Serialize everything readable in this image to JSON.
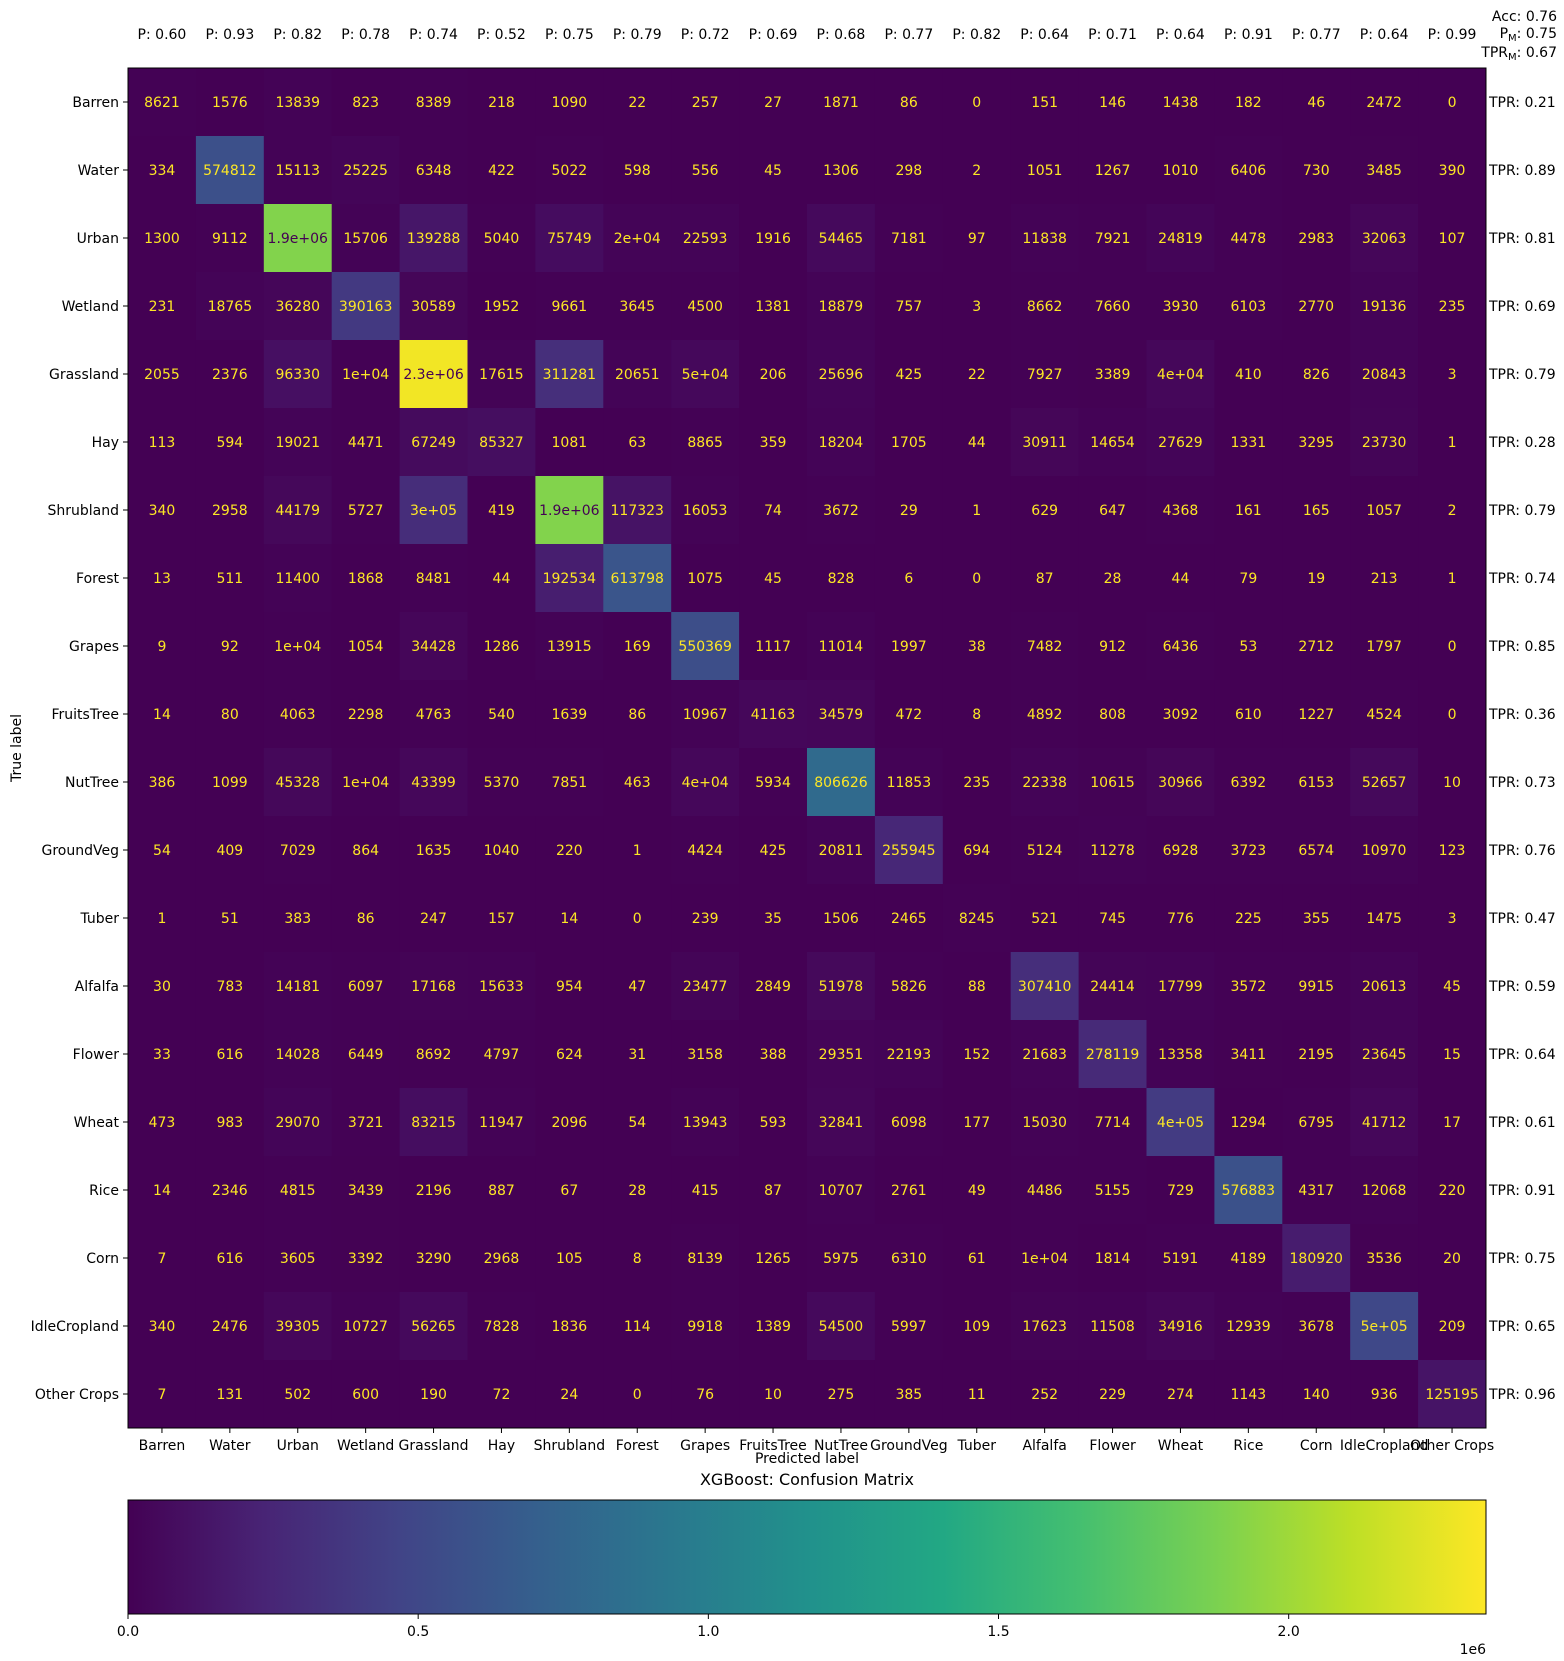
{
  "chart_data": {
    "type": "heatmap",
    "title": "XGBoost: Confusion Matrix",
    "xlabel": "Predicted label",
    "ylabel": "True label",
    "labels": [
      "Barren",
      "Water",
      "Urban",
      "Wetland",
      "Grassland",
      "Hay",
      "Shrubland",
      "Forest",
      "Grapes",
      "FruitsTree",
      "NutTree",
      "GroundVeg",
      "Tuber",
      "Alfalfa",
      "Flower",
      "Wheat",
      "Rice",
      "Corn",
      "IdleCropland",
      "Other Crops"
    ],
    "matrix": [
      [
        8621,
        1576,
        13839,
        823,
        8389,
        218,
        1090,
        22,
        257,
        27,
        1871,
        86,
        0,
        151,
        146,
        1438,
        182,
        46,
        2472,
        0
      ],
      [
        334,
        574812,
        15113,
        25225,
        6348,
        422,
        5022,
        598,
        556,
        45,
        1306,
        298,
        2,
        1051,
        1267,
        1010,
        6406,
        730,
        3485,
        390
      ],
      [
        1300,
        9112,
        1900000,
        15706,
        139288,
        5040,
        75749,
        20000,
        22593,
        1916,
        54465,
        7181,
        97,
        11838,
        7921,
        24819,
        4478,
        2983,
        32063,
        107
      ],
      [
        231,
        18765,
        36280,
        390163,
        30589,
        1952,
        9661,
        3645,
        4500,
        1381,
        18879,
        757,
        3,
        8662,
        7660,
        3930,
        6103,
        2770,
        19136,
        235
      ],
      [
        2055,
        2376,
        96330,
        10000,
        2300000,
        17615,
        311281,
        20651,
        50000,
        206,
        25696,
        425,
        22,
        7927,
        3389,
        40000,
        410,
        826,
        20843,
        3
      ],
      [
        113,
        594,
        19021,
        4471,
        67249,
        85327,
        1081,
        63,
        8865,
        359,
        18204,
        1705,
        44,
        30911,
        14654,
        27629,
        1331,
        3295,
        23730,
        1
      ],
      [
        340,
        2958,
        44179,
        5727,
        300000,
        419,
        1900000,
        117323,
        16053,
        74,
        3672,
        29,
        1,
        629,
        647,
        4368,
        161,
        165,
        1057,
        2
      ],
      [
        13,
        511,
        11400,
        1868,
        8481,
        44,
        192534,
        613798,
        1075,
        45,
        828,
        6,
        0,
        87,
        28,
        44,
        79,
        19,
        213,
        1
      ],
      [
        9,
        92,
        10000,
        1054,
        34428,
        1286,
        13915,
        169,
        550369,
        1117,
        11014,
        1997,
        38,
        7482,
        912,
        6436,
        53,
        2712,
        1797,
        0
      ],
      [
        14,
        80,
        4063,
        2298,
        4763,
        540,
        1639,
        86,
        10967,
        41163,
        34579,
        472,
        8,
        4892,
        808,
        3092,
        610,
        1227,
        4524,
        0
      ],
      [
        386,
        1099,
        45328,
        10000,
        43399,
        5370,
        7851,
        463,
        40000,
        5934,
        806626,
        11853,
        235,
        22338,
        10615,
        30966,
        6392,
        6153,
        52657,
        10
      ],
      [
        54,
        409,
        7029,
        864,
        1635,
        1040,
        220,
        1,
        4424,
        425,
        20811,
        255945,
        694,
        5124,
        11278,
        6928,
        3723,
        6574,
        10970,
        123
      ],
      [
        1,
        51,
        383,
        86,
        247,
        157,
        14,
        0,
        239,
        35,
        1506,
        2465,
        8245,
        521,
        745,
        776,
        225,
        355,
        1475,
        3
      ],
      [
        30,
        783,
        14181,
        6097,
        17168,
        15633,
        954,
        47,
        23477,
        2849,
        51978,
        5826,
        88,
        307410,
        24414,
        17799,
        3572,
        9915,
        20613,
        45
      ],
      [
        33,
        616,
        14028,
        6449,
        8692,
        4797,
        624,
        31,
        3158,
        388,
        29351,
        22193,
        152,
        21683,
        278119,
        13358,
        3411,
        2195,
        23645,
        15
      ],
      [
        473,
        983,
        29070,
        3721,
        83215,
        11947,
        2096,
        54,
        13943,
        593,
        32841,
        6098,
        177,
        15030,
        7714,
        400000,
        1294,
        6795,
        41712,
        17
      ],
      [
        14,
        2346,
        4815,
        3439,
        2196,
        887,
        67,
        28,
        415,
        87,
        10707,
        2761,
        49,
        4486,
        5155,
        729,
        576883,
        4317,
        12068,
        220
      ],
      [
        7,
        616,
        3605,
        3392,
        3290,
        2968,
        105,
        8,
        8139,
        1265,
        5975,
        6310,
        61,
        10000,
        1814,
        5191,
        4189,
        180920,
        3536,
        20
      ],
      [
        340,
        2476,
        39305,
        10727,
        56265,
        7828,
        1836,
        114,
        9918,
        1389,
        54500,
        5997,
        109,
        17623,
        11508,
        34916,
        12939,
        3678,
        500000,
        209
      ],
      [
        7,
        131,
        502,
        600,
        190,
        72,
        24,
        0,
        76,
        10,
        275,
        385,
        11,
        252,
        229,
        274,
        1143,
        140,
        936,
        125195
      ]
    ],
    "cell_text": [
      [
        "8621",
        "1576",
        "13839",
        "823",
        "8389",
        "218",
        "1090",
        "22",
        "257",
        "27",
        "1871",
        "86",
        "0",
        "151",
        "146",
        "1438",
        "182",
        "46",
        "2472",
        "0"
      ],
      [
        "334",
        "574812",
        "15113",
        "25225",
        "6348",
        "422",
        "5022",
        "598",
        "556",
        "45",
        "1306",
        "298",
        "2",
        "1051",
        "1267",
        "1010",
        "6406",
        "730",
        "3485",
        "390"
      ],
      [
        "1300",
        "9112",
        "1.9e+06",
        "15706",
        "139288",
        "5040",
        "75749",
        "2e+04",
        "22593",
        "1916",
        "54465",
        "7181",
        "97",
        "11838",
        "7921",
        "24819",
        "4478",
        "2983",
        "32063",
        "107"
      ],
      [
        "231",
        "18765",
        "36280",
        "390163",
        "30589",
        "1952",
        "9661",
        "3645",
        "4500",
        "1381",
        "18879",
        "757",
        "3",
        "8662",
        "7660",
        "3930",
        "6103",
        "2770",
        "19136",
        "235"
      ],
      [
        "2055",
        "2376",
        "96330",
        "1e+04",
        "2.3e+06",
        "17615",
        "311281",
        "20651",
        "5e+04",
        "206",
        "25696",
        "425",
        "22",
        "7927",
        "3389",
        "4e+04",
        "410",
        "826",
        "20843",
        "3"
      ],
      [
        "113",
        "594",
        "19021",
        "4471",
        "67249",
        "85327",
        "1081",
        "63",
        "8865",
        "359",
        "18204",
        "1705",
        "44",
        "30911",
        "14654",
        "27629",
        "1331",
        "3295",
        "23730",
        "1"
      ],
      [
        "340",
        "2958",
        "44179",
        "5727",
        "3e+05",
        "419",
        "1.9e+06",
        "117323",
        "16053",
        "74",
        "3672",
        "29",
        "1",
        "629",
        "647",
        "4368",
        "161",
        "165",
        "1057",
        "2"
      ],
      [
        "13",
        "511",
        "11400",
        "1868",
        "8481",
        "44",
        "192534",
        "613798",
        "1075",
        "45",
        "828",
        "6",
        "0",
        "87",
        "28",
        "44",
        "79",
        "19",
        "213",
        "1"
      ],
      [
        "9",
        "92",
        "1e+04",
        "1054",
        "34428",
        "1286",
        "13915",
        "169",
        "550369",
        "1117",
        "11014",
        "1997",
        "38",
        "7482",
        "912",
        "6436",
        "53",
        "2712",
        "1797",
        "0"
      ],
      [
        "14",
        "80",
        "4063",
        "2298",
        "4763",
        "540",
        "1639",
        "86",
        "10967",
        "41163",
        "34579",
        "472",
        "8",
        "4892",
        "808",
        "3092",
        "610",
        "1227",
        "4524",
        "0"
      ],
      [
        "386",
        "1099",
        "45328",
        "1e+04",
        "43399",
        "5370",
        "7851",
        "463",
        "4e+04",
        "5934",
        "806626",
        "11853",
        "235",
        "22338",
        "10615",
        "30966",
        "6392",
        "6153",
        "52657",
        "10"
      ],
      [
        "54",
        "409",
        "7029",
        "864",
        "1635",
        "1040",
        "220",
        "1",
        "4424",
        "425",
        "20811",
        "255945",
        "694",
        "5124",
        "11278",
        "6928",
        "3723",
        "6574",
        "10970",
        "123"
      ],
      [
        "1",
        "51",
        "383",
        "86",
        "247",
        "157",
        "14",
        "0",
        "239",
        "35",
        "1506",
        "2465",
        "8245",
        "521",
        "745",
        "776",
        "225",
        "355",
        "1475",
        "3"
      ],
      [
        "30",
        "783",
        "14181",
        "6097",
        "17168",
        "15633",
        "954",
        "47",
        "23477",
        "2849",
        "51978",
        "5826",
        "88",
        "307410",
        "24414",
        "17799",
        "3572",
        "9915",
        "20613",
        "45"
      ],
      [
        "33",
        "616",
        "14028",
        "6449",
        "8692",
        "4797",
        "624",
        "31",
        "3158",
        "388",
        "29351",
        "22193",
        "152",
        "21683",
        "278119",
        "13358",
        "3411",
        "2195",
        "23645",
        "15"
      ],
      [
        "473",
        "983",
        "29070",
        "3721",
        "83215",
        "11947",
        "2096",
        "54",
        "13943",
        "593",
        "32841",
        "6098",
        "177",
        "15030",
        "7714",
        "4e+05",
        "1294",
        "6795",
        "41712",
        "17"
      ],
      [
        "14",
        "2346",
        "4815",
        "3439",
        "2196",
        "887",
        "67",
        "28",
        "415",
        "87",
        "10707",
        "2761",
        "49",
        "4486",
        "5155",
        "729",
        "576883",
        "4317",
        "12068",
        "220"
      ],
      [
        "7",
        "616",
        "3605",
        "3392",
        "3290",
        "2968",
        "105",
        "8",
        "8139",
        "1265",
        "5975",
        "6310",
        "61",
        "1e+04",
        "1814",
        "5191",
        "4189",
        "180920",
        "3536",
        "20"
      ],
      [
        "340",
        "2476",
        "39305",
        "10727",
        "56265",
        "7828",
        "1836",
        "114",
        "9918",
        "1389",
        "54500",
        "5997",
        "109",
        "17623",
        "11508",
        "34916",
        "12939",
        "3678",
        "5e+05",
        "209"
      ],
      [
        "7",
        "131",
        "502",
        "600",
        "190",
        "72",
        "24",
        "0",
        "76",
        "10",
        "275",
        "385",
        "11",
        "252",
        "229",
        "274",
        "1143",
        "140",
        "936",
        "125195"
      ]
    ],
    "precision_labels": [
      "P: 0.60",
      "P: 0.93",
      "P: 0.82",
      "P: 0.78",
      "P: 0.74",
      "P: 0.52",
      "P: 0.75",
      "P: 0.79",
      "P: 0.72",
      "P: 0.69",
      "P: 0.68",
      "P: 0.77",
      "P: 0.82",
      "P: 0.64",
      "P: 0.71",
      "P: 0.64",
      "P: 0.91",
      "P: 0.77",
      "P: 0.64",
      "P: 0.99"
    ],
    "tpr_labels": [
      "TPR: 0.21",
      "TPR: 0.89",
      "TPR: 0.81",
      "TPR: 0.69",
      "TPR: 0.79",
      "TPR: 0.28",
      "TPR: 0.79",
      "TPR: 0.74",
      "TPR: 0.85",
      "TPR: 0.36",
      "TPR: 0.73",
      "TPR: 0.76",
      "TPR: 0.47",
      "TPR: 0.59",
      "TPR: 0.64",
      "TPR: 0.61",
      "TPR: 0.91",
      "TPR: 0.75",
      "TPR: 0.65",
      "TPR: 0.96"
    ],
    "summary": {
      "acc": "Acc: 0.76",
      "pm_prefix": "P",
      "pm_sub": "M",
      "pm_value": ": 0.75",
      "tprm_prefix": "TPR",
      "tprm_sub": "M",
      "tprm_value": ": 0.67"
    },
    "colorbar": {
      "min": 0,
      "max": 2340000,
      "ticks": [
        0,
        500000,
        1000000,
        1500000,
        2000000
      ],
      "tick_labels": [
        "0.0",
        "0.5",
        "1.0",
        "1.5",
        "2.0"
      ],
      "scale_label": "1e6",
      "colormap": "viridis"
    },
    "colors": {
      "text_on_dark": "#fde725",
      "text_on_light": "#440154",
      "axis": "#000000"
    }
  }
}
